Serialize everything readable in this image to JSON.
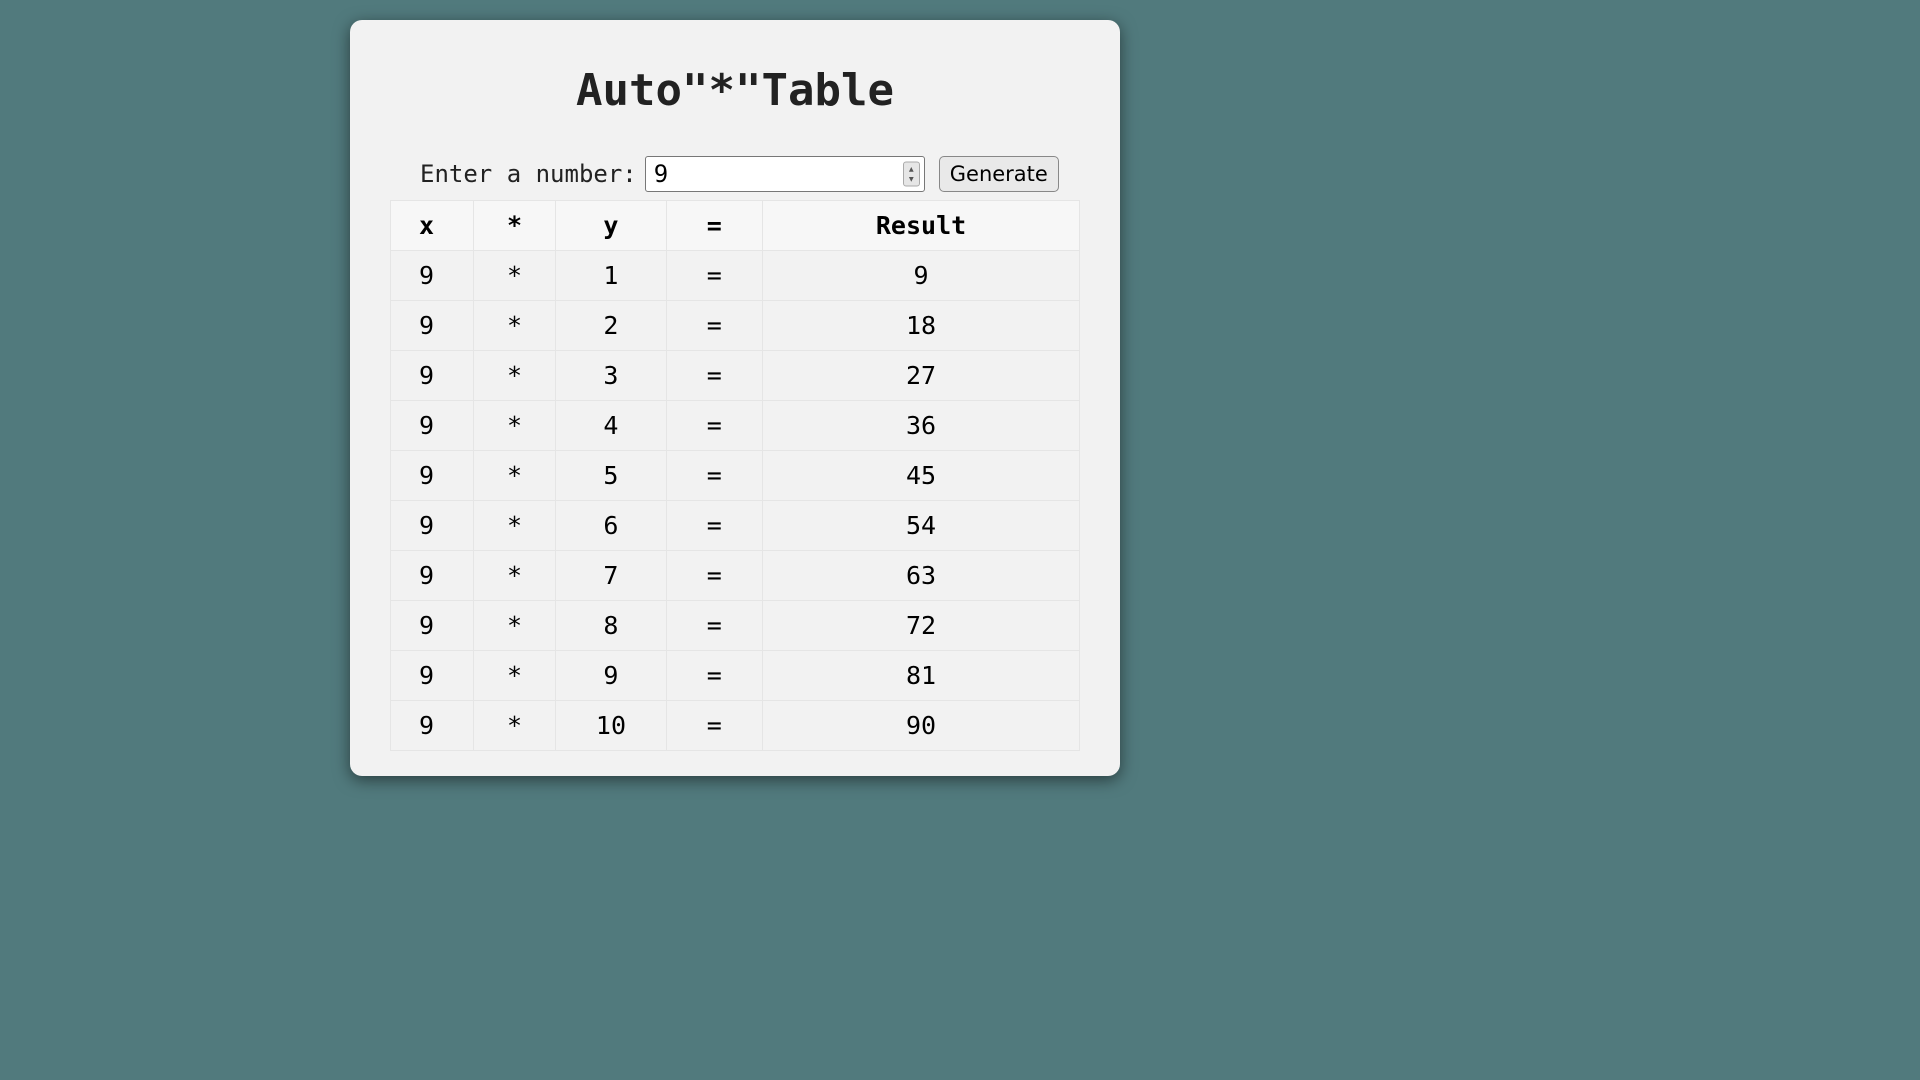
{
  "window": {
    "title": "Auto\"*\"Table"
  },
  "input": {
    "label": "Enter a number:",
    "value": "9"
  },
  "buttons": {
    "generate": "Generate"
  },
  "table": {
    "type": "table",
    "header": {
      "col1": "x",
      "col2": "*",
      "col3": "y",
      "col4": "=",
      "col5": "Result"
    },
    "rows": [
      {
        "x": "9",
        "op": "*",
        "y": "1",
        "eq": "=",
        "result": "9"
      },
      {
        "x": "9",
        "op": "*",
        "y": "2",
        "eq": "=",
        "result": "18"
      },
      {
        "x": "9",
        "op": "*",
        "y": "3",
        "eq": "=",
        "result": "27"
      },
      {
        "x": "9",
        "op": "*",
        "y": "4",
        "eq": "=",
        "result": "36"
      },
      {
        "x": "9",
        "op": "*",
        "y": "5",
        "eq": "=",
        "result": "45"
      },
      {
        "x": "9",
        "op": "*",
        "y": "6",
        "eq": "=",
        "result": "54"
      },
      {
        "x": "9",
        "op": "*",
        "y": "7",
        "eq": "=",
        "result": "63"
      },
      {
        "x": "9",
        "op": "*",
        "y": "8",
        "eq": "=",
        "result": "72"
      },
      {
        "x": "9",
        "op": "*",
        "y": "9",
        "eq": "=",
        "result": "81"
      },
      {
        "x": "9",
        "op": "*",
        "y": "10",
        "eq": "=",
        "result": "90"
      }
    ],
    "background_color": "#f2f2f2",
    "border_color": "#e5e5e5",
    "header_bg": "#f7f7f7",
    "font_size": 25
  },
  "colors": {
    "page_bg": "#517a7d",
    "window_bg": "#f2f2f2",
    "text": "#222222"
  }
}
